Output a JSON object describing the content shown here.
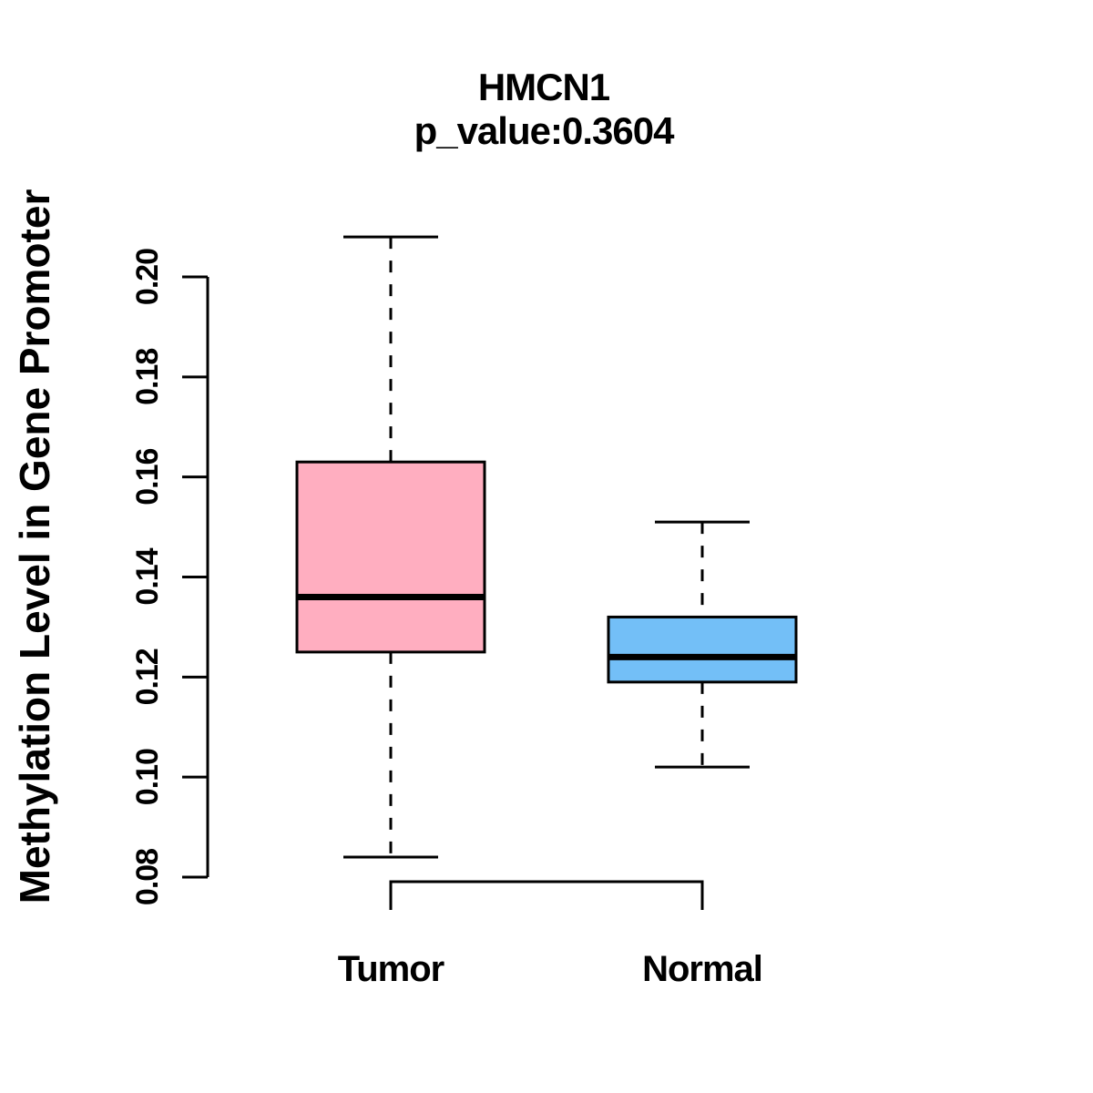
{
  "title": "HMCN1",
  "subtitle": "p_value:0.3604",
  "chart_data": {
    "type": "boxplot",
    "title": "HMCN1",
    "subtitle": "p_value:0.3604",
    "xlabel": "",
    "ylabel": "Methylation Level in Gene Promoter",
    "ylim": [
      0.08,
      0.2
    ],
    "yticks": [
      0.08,
      0.1,
      0.12,
      0.14,
      0.16,
      0.18,
      0.2
    ],
    "ytick_labels": [
      "0.08",
      "0.10",
      "0.12",
      "0.14",
      "0.16",
      "0.18",
      "0.20"
    ],
    "categories": [
      "Tumor",
      "Normal"
    ],
    "grid": false,
    "legend": "none",
    "whisker_style": "dashed",
    "stroke_color": "#000000",
    "series": [
      {
        "name": "Tumor",
        "fill_color": "#FFAEC0",
        "whisker_low": 0.084,
        "q1": 0.125,
        "median": 0.136,
        "q3": 0.163,
        "whisker_high": 0.208
      },
      {
        "name": "Normal",
        "fill_color": "#73BFF7",
        "whisker_low": 0.102,
        "q1": 0.119,
        "median": 0.124,
        "q3": 0.132,
        "whisker_high": 0.151
      }
    ]
  }
}
